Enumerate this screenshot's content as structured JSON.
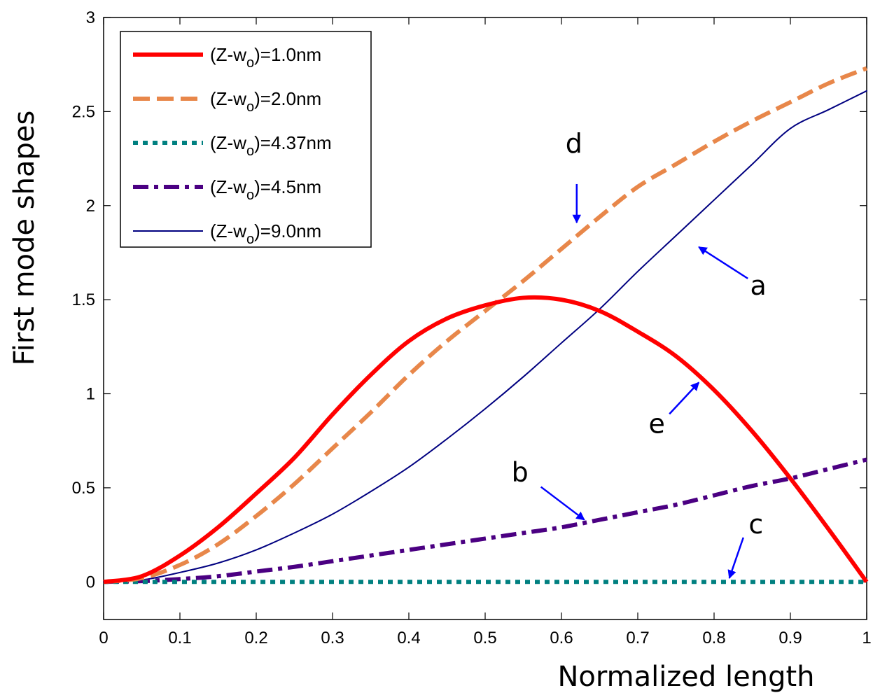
{
  "chart_data": {
    "type": "line",
    "title": "",
    "xlabel": "Normalized length",
    "ylabel": "First mode shapes",
    "xlim": [
      0,
      1
    ],
    "ylim": [
      -0.2,
      3
    ],
    "xticks": [
      "0",
      "0.1",
      "0.2",
      "0.3",
      "0.4",
      "0.5",
      "0.6",
      "0.7",
      "0.8",
      "0.9",
      "1"
    ],
    "yticks": [
      "0",
      "0.5",
      "1",
      "1.5",
      "2",
      "2.5",
      "3"
    ],
    "legend_position": "top-left",
    "series": [
      {
        "name": "(Z-wo)=1.0nm",
        "label_main": "(Z-w",
        "label_sub": "o",
        "label_tail": ")=1.0nm",
        "color": "#ff0000",
        "style": "solid",
        "x": [
          0,
          0.05,
          0.1,
          0.15,
          0.2,
          0.25,
          0.3,
          0.35,
          0.4,
          0.45,
          0.5,
          0.55,
          0.6,
          0.65,
          0.7,
          0.75,
          0.8,
          0.85,
          0.9,
          0.95,
          1.0
        ],
        "y": [
          0,
          0.03,
          0.14,
          0.29,
          0.47,
          0.66,
          0.89,
          1.1,
          1.28,
          1.4,
          1.47,
          1.51,
          1.5,
          1.44,
          1.33,
          1.2,
          1.02,
          0.8,
          0.55,
          0.28,
          0
        ]
      },
      {
        "name": "(Z-wo)=2.0nm",
        "label_main": "(Z-w",
        "label_sub": "o",
        "label_tail": ")=2.0nm",
        "color": "#e8874a",
        "style": "dashed",
        "x": [
          0,
          0.05,
          0.1,
          0.15,
          0.2,
          0.25,
          0.3,
          0.35,
          0.4,
          0.45,
          0.5,
          0.55,
          0.6,
          0.65,
          0.7,
          0.75,
          0.8,
          0.85,
          0.9,
          0.95,
          1.0
        ],
        "y": [
          0,
          0.02,
          0.09,
          0.2,
          0.35,
          0.52,
          0.71,
          0.9,
          1.1,
          1.28,
          1.44,
          1.6,
          1.77,
          1.94,
          2.1,
          2.22,
          2.34,
          2.45,
          2.55,
          2.65,
          2.73
        ]
      },
      {
        "name": "(Z-wo)=4.37nm",
        "label_main": "(Z-w",
        "label_sub": "o",
        "label_tail": ")=4.37nm",
        "color": "#008080",
        "style": "dotted",
        "x": [
          0,
          0.25,
          0.5,
          0.75,
          1.0
        ],
        "y": [
          0,
          0,
          0,
          0,
          0
        ]
      },
      {
        "name": "(Z-wo)=4.5nm",
        "label_main": "(Z-w",
        "label_sub": "o",
        "label_tail": ")=4.5nm",
        "color": "#4b0082",
        "style": "dashdot",
        "x": [
          0,
          0.05,
          0.1,
          0.15,
          0.2,
          0.25,
          0.3,
          0.35,
          0.4,
          0.45,
          0.5,
          0.55,
          0.6,
          0.65,
          0.7,
          0.75,
          0.8,
          0.85,
          0.9,
          0.95,
          1.0
        ],
        "y": [
          0,
          0.004,
          0.015,
          0.03,
          0.055,
          0.08,
          0.11,
          0.14,
          0.17,
          0.2,
          0.23,
          0.26,
          0.29,
          0.33,
          0.37,
          0.41,
          0.46,
          0.51,
          0.55,
          0.6,
          0.65
        ]
      },
      {
        "name": "(Z-wo)=9.0nm",
        "label_main": "(Z-w",
        "label_sub": "o",
        "label_tail": ")=9.0nm",
        "color": "#000080",
        "style": "thin",
        "x": [
          0,
          0.05,
          0.1,
          0.15,
          0.2,
          0.25,
          0.3,
          0.35,
          0.4,
          0.45,
          0.5,
          0.55,
          0.6,
          0.65,
          0.7,
          0.75,
          0.8,
          0.85,
          0.9,
          0.95,
          1.0
        ],
        "y": [
          0,
          0.01,
          0.05,
          0.1,
          0.17,
          0.26,
          0.36,
          0.48,
          0.61,
          0.76,
          0.92,
          1.09,
          1.27,
          1.45,
          1.65,
          1.84,
          2.03,
          2.22,
          2.41,
          2.51,
          2.61
        ]
      }
    ],
    "annotations": [
      {
        "text": "a",
        "arrow_to": [
          0.78,
          1.78
        ]
      },
      {
        "text": "b",
        "arrow_to": [
          0.63,
          0.33
        ]
      },
      {
        "text": "c",
        "arrow_to": [
          0.82,
          0.02
        ]
      },
      {
        "text": "d",
        "arrow_to": [
          0.62,
          1.91
        ]
      },
      {
        "text": "e",
        "arrow_to": [
          0.78,
          1.06
        ]
      }
    ],
    "annotation_color": "#0000ff"
  }
}
